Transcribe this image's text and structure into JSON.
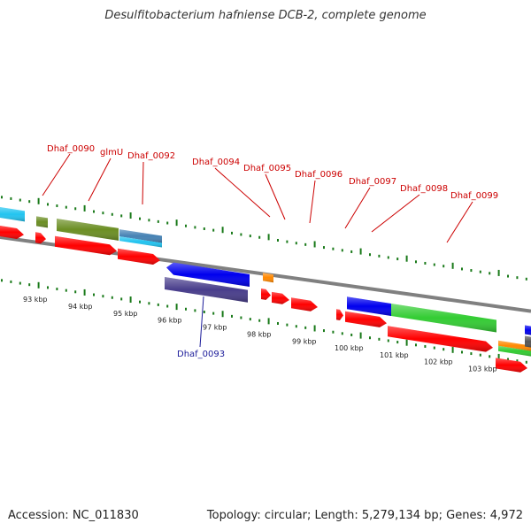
{
  "title": "Desulfitobacterium hafniense DCB-2, complete genome",
  "footer": {
    "accession": "Accession: NC_011830",
    "summary": "Topology: circular; Length: 5,279,134 bp; Genes: 4,972"
  },
  "colors": {
    "backbone": "#808080",
    "tick": "#1a7a1a",
    "cds": "#ff0000",
    "label_above": "#cc0000",
    "label_below": "#1a1a99"
  },
  "kbp_labels": [
    "93 kbp",
    "94 kbp",
    "95 kbp",
    "96 kbp",
    "97 kbp",
    "98 kbp",
    "99 kbp",
    "100 kbp",
    "101 kbp",
    "102 kbp",
    "103 kbp"
  ],
  "gene_labels": [
    "Dhaf_0090",
    "glmU",
    "Dhaf_0092",
    "Dhaf_0094",
    "Dhaf_0095",
    "Dhaf_0096",
    "Dhaf_0097",
    "Dhaf_0098",
    "Dhaf_0099",
    "Dhaf_0093"
  ]
}
